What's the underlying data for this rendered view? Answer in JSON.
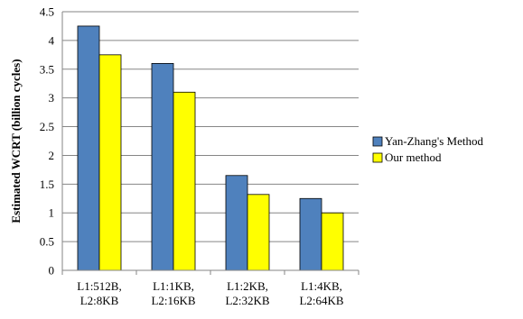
{
  "chart_data": {
    "type": "bar",
    "title": "",
    "xlabel": "",
    "ylabel": "Estimated WCRT (billion cycles)",
    "categories": [
      [
        "L1:512B,",
        "L2:8KB"
      ],
      [
        "L1:1KB,",
        "L2:16KB"
      ],
      [
        "L1:2KB,",
        "L2:32KB"
      ],
      [
        "L1:4KB,",
        "L2:64KB"
      ]
    ],
    "ylim": [
      0,
      4.5
    ],
    "yticks": [
      "0",
      "0.5",
      "1",
      "1.5",
      "2",
      "2.5",
      "3",
      "3.5",
      "4",
      "4.5"
    ],
    "grid": true,
    "legend_position": "right",
    "series": [
      {
        "name": "Yan-Zhang's Method",
        "color": "#4F81BD",
        "values": [
          4.25,
          3.6,
          1.65,
          1.25
        ]
      },
      {
        "name": "Our method",
        "color": "#FFFF00",
        "values": [
          3.75,
          3.1,
          1.32,
          1.0
        ]
      }
    ]
  }
}
